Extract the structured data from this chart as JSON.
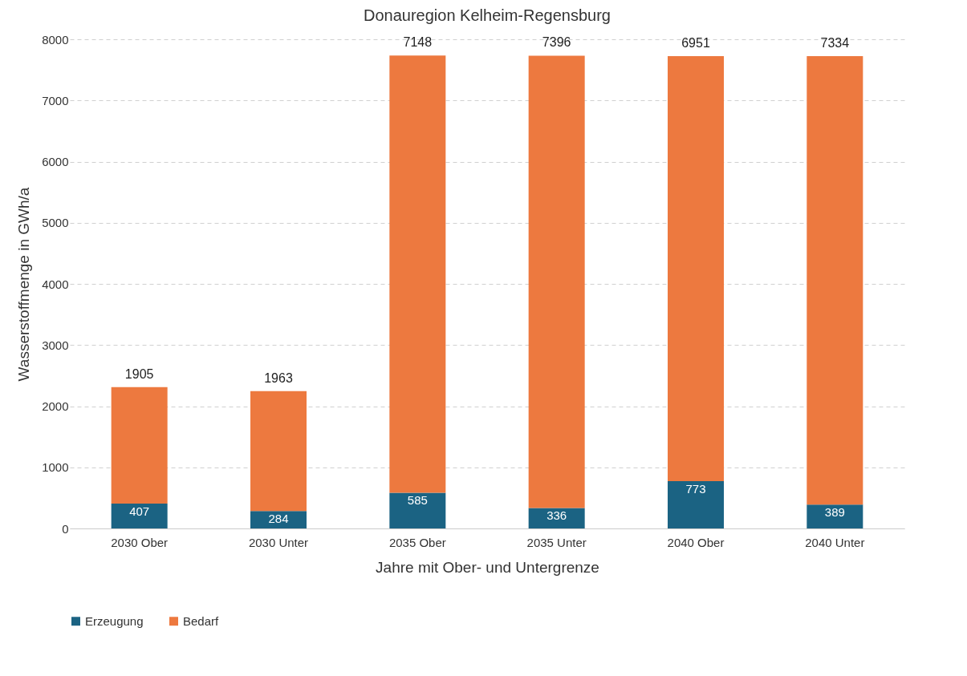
{
  "chart_data": {
    "type": "bar",
    "title": "Donauregion Kelheim-Regensburg",
    "xlabel": "Jahre mit Ober- und Untergrenze",
    "ylabel": "Wasserstoffmenge in GWh/a",
    "categories": [
      "2030 Ober",
      "2030 Unter",
      "2035 Ober",
      "2035 Unter",
      "2040 Ober",
      "2040 Unter"
    ],
    "series": [
      {
        "name": "Erzeugung",
        "color": "#1b6383",
        "values": [
          407,
          284,
          585,
          336,
          773,
          389
        ]
      },
      {
        "name": "Bedarf",
        "color": "#ed793f",
        "values": [
          1905,
          1963,
          7148,
          7396,
          6951,
          7334
        ]
      }
    ],
    "stacked": true,
    "data_labels": true,
    "ylim": [
      0,
      8000
    ],
    "yticks": [
      0,
      1000,
      2000,
      3000,
      4000,
      5000,
      6000,
      7000,
      8000
    ],
    "grid": "y",
    "legend": "bottom"
  }
}
